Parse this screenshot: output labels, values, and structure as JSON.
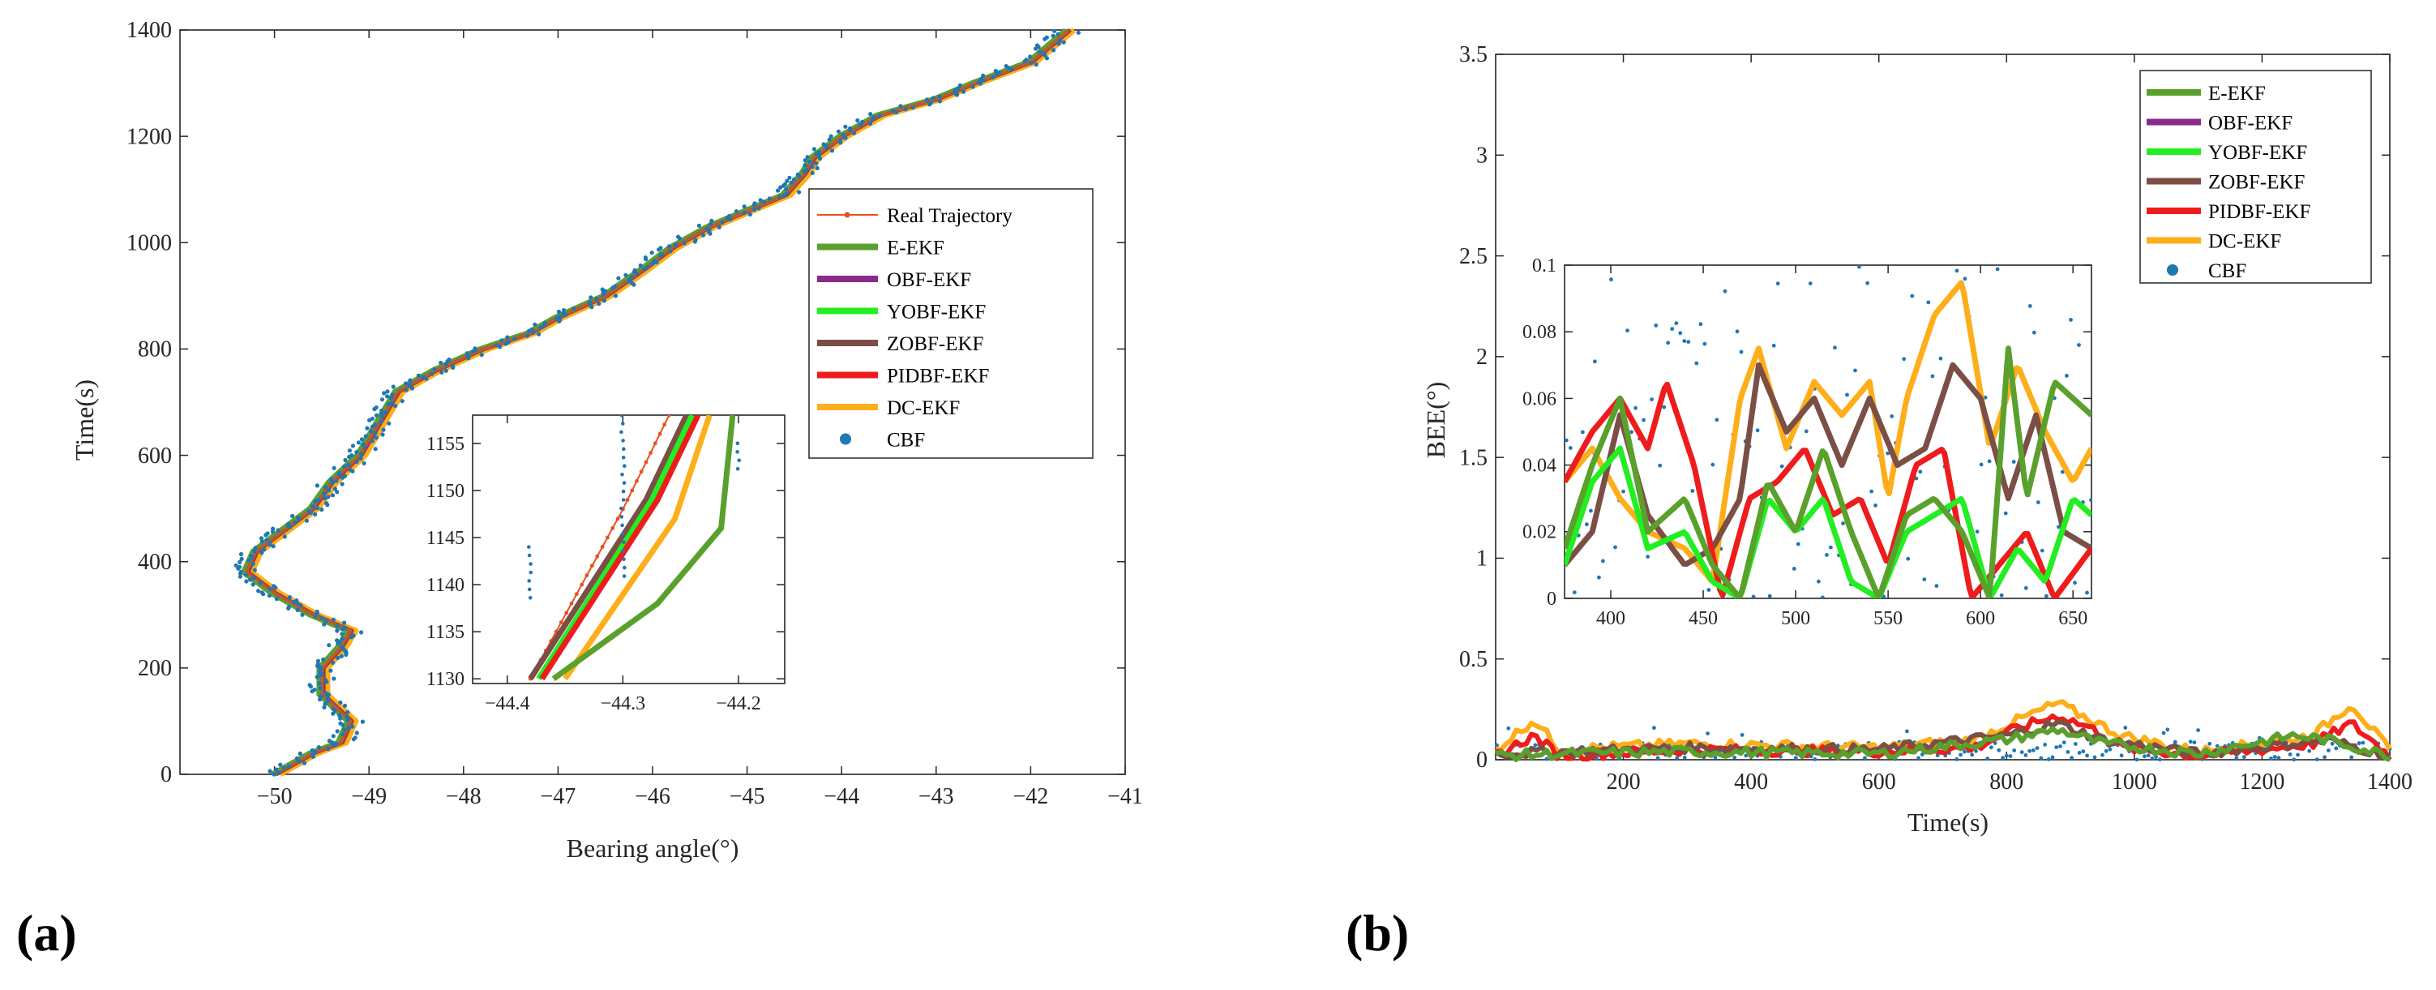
{
  "panels": {
    "a": "(a)",
    "b": "(b)"
  },
  "colors": {
    "Real Trajectory": "#e8511e",
    "E-EKF": "#5aa02c",
    "OBF-EKF": "#8b2a8b",
    "YOBF-EKF": "#22ee22",
    "ZOBF-EKF": "#7b4f45",
    "PIDBF-EKF": "#ee1c1c",
    "DC-EKF": "#fdae1a",
    "CBF": "#1f77b4"
  },
  "chart_data": [
    {
      "type": "line",
      "title": "",
      "xlabel": "Bearing angle(°)",
      "ylabel": "Time(s)",
      "xlim": [
        -51,
        -41
      ],
      "ylim": [
        0,
        1400
      ],
      "xticks": [
        -50,
        -49,
        -48,
        -47,
        -46,
        -45,
        -44,
        -43,
        -42,
        -41
      ],
      "yticks": [
        0,
        200,
        400,
        600,
        800,
        1000,
        1200,
        1400
      ],
      "legend": [
        "Real Trajectory",
        "E-EKF",
        "OBF-EKF",
        "YOBF-EKF",
        "ZOBF-EKF",
        "PIDBF-EKF",
        "DC-EKF",
        "CBF"
      ],
      "legend_position": "right",
      "trajectory": {
        "x": [
          -50.0,
          -49.8,
          -49.6,
          -49.3,
          -49.2,
          -49.5,
          -49.5,
          -49.3,
          -49.2,
          -49.6,
          -50.0,
          -50.3,
          -50.2,
          -49.9,
          -49.6,
          -49.4,
          -49.1,
          -48.9,
          -48.7,
          -48.3,
          -47.8,
          -47.3,
          -47.0,
          -46.5,
          -46.1,
          -45.8,
          -45.4,
          -45.0,
          -44.6,
          -44.4,
          -44.3,
          -44.0,
          -43.6,
          -43.0,
          -42.6,
          -42.3,
          -42.0,
          -41.8,
          -41.6
        ],
        "y": [
          0,
          20,
          40,
          60,
          100,
          150,
          200,
          240,
          270,
          300,
          340,
          380,
          420,
          460,
          500,
          550,
          600,
          660,
          720,
          760,
          800,
          830,
          860,
          900,
          950,
          990,
          1030,
          1060,
          1090,
          1130,
          1160,
          1200,
          1240,
          1270,
          1300,
          1320,
          1340,
          1370,
          1400
        ]
      },
      "inset": {
        "xlim": [
          -44.43,
          -44.16
        ],
        "ylim": [
          1129.5,
          1158
        ],
        "xticks": [
          -44.4,
          -44.3,
          -44.2
        ],
        "yticks": [
          1130,
          1135,
          1140,
          1145,
          1150,
          1155
        ],
        "series": [
          {
            "name": "Real Trajectory",
            "x": [
              -44.38,
              -44.3,
              -44.26
            ],
            "y": [
              1130,
              1148,
              1158
            ]
          },
          {
            "name": "ZOBF-EKF",
            "x": [
              -44.38,
              -44.28,
              -44.245
            ],
            "y": [
              1130,
              1149,
              1158
            ]
          },
          {
            "name": "YOBF-EKF",
            "x": [
              -44.373,
              -44.275,
              -44.24
            ],
            "y": [
              1130,
              1149,
              1158
            ]
          },
          {
            "name": "PIDBF-EKF",
            "x": [
              -44.37,
              -44.27,
              -44.235
            ],
            "y": [
              1130,
              1149,
              1158
            ]
          },
          {
            "name": "DC-EKF",
            "x": [
              -44.35,
              -44.255,
              -44.225
            ],
            "y": [
              1130,
              1147,
              1158
            ]
          },
          {
            "name": "E-EKF",
            "x": [
              -44.36,
              -44.27,
              -44.215,
              -44.205
            ],
            "y": [
              1130,
              1138,
              1146,
              1158
            ]
          }
        ]
      }
    },
    {
      "type": "line",
      "title": "",
      "xlabel": "Time(s)",
      "ylabel": "BEE(°)",
      "xlim": [
        0,
        1400
      ],
      "ylim": [
        0,
        3.5
      ],
      "xticks": [
        200,
        400,
        600,
        800,
        1000,
        1200,
        1400
      ],
      "yticks": [
        0,
        0.5,
        1,
        1.5,
        2,
        2.5,
        3,
        3.5
      ],
      "legend": [
        "E-EKF",
        "OBF-EKF",
        "YOBF-EKF",
        "ZOBF-EKF",
        "PIDBF-EKF",
        "DC-EKF",
        "CBF"
      ],
      "legend_position": "top-right",
      "series": [
        {
          "name": "DC-EKF",
          "x": [
            0,
            60,
            100,
            300,
            600,
            750,
            820,
            880,
            930,
            980,
            1100,
            1200,
            1280,
            1340,
            1400
          ],
          "y": [
            0.05,
            0.2,
            0.05,
            0.08,
            0.06,
            0.1,
            0.2,
            0.28,
            0.2,
            0.12,
            0.04,
            0.08,
            0.12,
            0.28,
            0.04
          ]
        },
        {
          "name": "PIDBF-EKF",
          "x": [
            0,
            60,
            100,
            300,
            600,
            750,
            820,
            880,
            930,
            980,
            1100,
            1200,
            1280,
            1340,
            1400
          ],
          "y": [
            0.02,
            0.12,
            0.02,
            0.05,
            0.04,
            0.06,
            0.16,
            0.22,
            0.16,
            0.06,
            0.02,
            0.05,
            0.08,
            0.18,
            0.02
          ]
        },
        {
          "name": "ZOBF-EKF",
          "x": [
            0,
            100,
            300,
            600,
            800,
            880,
            950,
            1100,
            1300,
            1400
          ],
          "y": [
            0.03,
            0.04,
            0.06,
            0.05,
            0.12,
            0.18,
            0.1,
            0.03,
            0.1,
            0.02
          ]
        },
        {
          "name": "E-EKF",
          "x": [
            0,
            100,
            300,
            600,
            800,
            880,
            950,
            1100,
            1250,
            1300,
            1400
          ],
          "y": [
            0.02,
            0.03,
            0.04,
            0.03,
            0.1,
            0.15,
            0.08,
            0.03,
            0.12,
            0.1,
            0.02
          ]
        }
      ],
      "inset": {
        "xlim": [
          375,
          660
        ],
        "ylim": [
          0,
          0.1
        ],
        "xticks": [
          400,
          450,
          500,
          550,
          600,
          650
        ],
        "yticks": [
          0,
          0.02,
          0.04,
          0.06,
          0.08,
          0.1
        ],
        "series": [
          {
            "name": "DC-EKF",
            "x": [
              375,
              390,
              405,
              420,
              440,
              455,
              470,
              480,
              495,
              510,
              525,
              540,
              550,
              560,
              575,
              590,
              605,
              620,
              635,
              650,
              660
            ],
            "y": [
              0.035,
              0.045,
              0.03,
              0.02,
              0.015,
              0.005,
              0.06,
              0.075,
              0.045,
              0.065,
              0.055,
              0.065,
              0.03,
              0.06,
              0.085,
              0.095,
              0.045,
              0.07,
              0.05,
              0.035,
              0.045
            ]
          },
          {
            "name": "ZOBF-EKF",
            "x": [
              375,
              390,
              405,
              420,
              440,
              455,
              470,
              480,
              495,
              510,
              525,
              540,
              555,
              570,
              585,
              600,
              615,
              630,
              645,
              660
            ],
            "y": [
              0.01,
              0.02,
              0.055,
              0.025,
              0.01,
              0.015,
              0.03,
              0.07,
              0.05,
              0.06,
              0.04,
              0.06,
              0.04,
              0.045,
              0.07,
              0.06,
              0.03,
              0.055,
              0.02,
              0.015
            ]
          },
          {
            "name": "PIDBF-EKF",
            "x": [
              375,
              390,
              405,
              420,
              430,
              445,
              460,
              475,
              490,
              505,
              520,
              535,
              550,
              565,
              580,
              595,
              610,
              625,
              640,
              660
            ],
            "y": [
              0.035,
              0.05,
              0.06,
              0.045,
              0.065,
              0.04,
              0.0,
              0.03,
              0.035,
              0.045,
              0.025,
              0.03,
              0.01,
              0.04,
              0.045,
              0.0,
              0.01,
              0.02,
              0.0,
              0.015
            ]
          },
          {
            "name": "YOBF-EKF",
            "x": [
              375,
              390,
              405,
              420,
              440,
              455,
              470,
              485,
              500,
              515,
              530,
              545,
              560,
              575,
              590,
              605,
              620,
              635,
              650,
              660
            ],
            "y": [
              0.01,
              0.035,
              0.045,
              0.015,
              0.02,
              0.005,
              0.0,
              0.03,
              0.02,
              0.03,
              0.005,
              0.0,
              0.02,
              0.025,
              0.03,
              0.0,
              0.015,
              0.005,
              0.03,
              0.025
            ]
          },
          {
            "name": "E-EKF",
            "x": [
              375,
              390,
              405,
              420,
              440,
              455,
              470,
              485,
              500,
              515,
              530,
              545,
              560,
              575,
              590,
              605,
              615,
              625,
              640,
              660
            ],
            "y": [
              0.015,
              0.04,
              0.06,
              0.02,
              0.03,
              0.01,
              0.0,
              0.035,
              0.02,
              0.045,
              0.02,
              0.0,
              0.025,
              0.03,
              0.02,
              0.0,
              0.075,
              0.03,
              0.065,
              0.055
            ]
          }
        ]
      }
    }
  ]
}
